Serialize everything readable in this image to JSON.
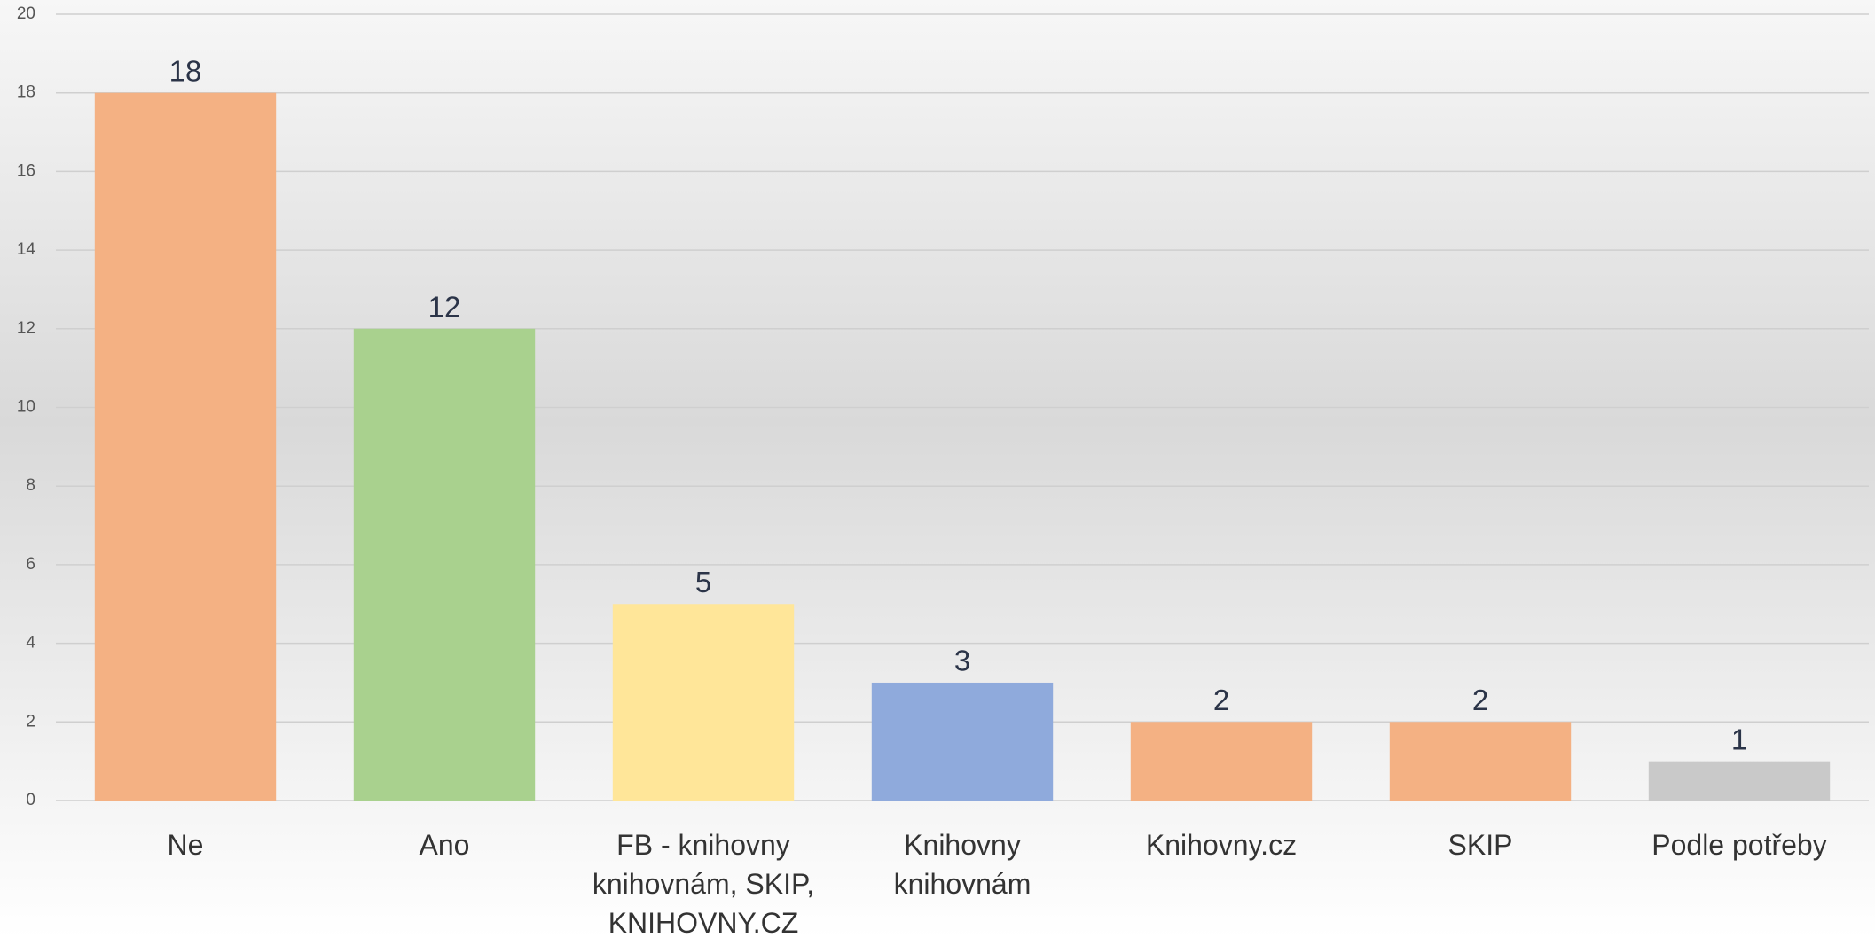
{
  "chart_data": {
    "type": "bar",
    "categories": [
      "Ne",
      "Ano",
      "FB - knihovny knihovnám, SKIP, KNIHOVNY.CZ",
      "Knihovny knihovnám",
      "Knihovny.cz",
      "SKIP",
      "Podle potřeby"
    ],
    "values": [
      18,
      12,
      5,
      3,
      2,
      2,
      1
    ],
    "colors": [
      "#f4b183",
      "#a9d18e",
      "#ffe699",
      "#8faadc",
      "#f4b183",
      "#f4b183",
      "#c9c9c9"
    ],
    "ylim": [
      0,
      20
    ],
    "yticks": [
      0,
      2,
      4,
      6,
      8,
      10,
      12,
      14,
      16,
      18,
      20
    ],
    "grid": true
  }
}
